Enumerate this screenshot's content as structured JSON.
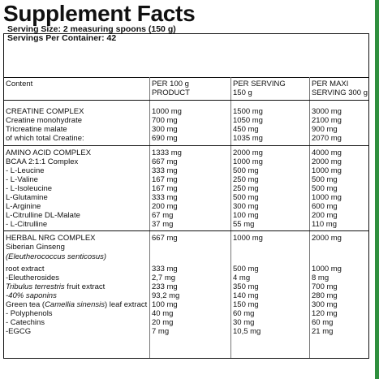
{
  "title": "Supplement Facts",
  "serving_size": "Serving Size: 2 measuring spoons (150 g)",
  "servings_per_container": "Servings Per Container: 42",
  "headers": {
    "content": "Content",
    "per100_line1": "PER 100 g",
    "per100_line2": "PRODUCT",
    "perserving_line1": "PER SERVING",
    "perserving_line2": "150 g",
    "permaxi_line1": "PER MAXI",
    "permaxi_line2": "SERVING  300 g"
  },
  "rows": [
    {
      "name": "CREATINE COMPLEX",
      "per100": "1000 mg",
      "serving": "1500 mg",
      "maxi": "3000 mg"
    },
    {
      "name": "Creatine monohydrate",
      "per100": "700 mg",
      "serving": "1050 mg",
      "maxi": "2100 mg"
    },
    {
      "name": "Tricreatine malate",
      "per100": "300 mg",
      "serving": "450 mg",
      "maxi": "900 mg"
    },
    {
      "name": "of which total Creatine:",
      "per100": "690 mg",
      "serving": "1035 mg",
      "maxi": "2070 mg"
    },
    {
      "name": "AMINO ACID COMPLEX",
      "per100": "1333 mg",
      "serving": "2000 mg",
      "maxi": "4000 mg"
    },
    {
      "name": "BCAA 2:1:1 Complex",
      "per100": "667 mg",
      "serving": "1000 mg",
      "maxi": "2000 mg"
    },
    {
      "name": "- L-Leucine",
      "per100": "333 mg",
      "serving": "500 mg",
      "maxi": "1000 mg"
    },
    {
      "name": "- L-Valine",
      "per100": "167 mg",
      "serving": "250 mg",
      "maxi": "500 mg"
    },
    {
      "name": "- L-Isoleucine",
      "per100": "167 mg",
      "serving": "250 mg",
      "maxi": "500 mg"
    },
    {
      "name": "L-Glutamine",
      "per100": "333 mg",
      "serving": "500 mg",
      "maxi": "1000 mg"
    },
    {
      "name": "L-Arginine",
      "per100": "200 mg",
      "serving": "300 mg",
      "maxi": "600 mg"
    },
    {
      "name": "L-Citrulline DL-Malate",
      "per100": "67 mg",
      "serving": "100 mg",
      "maxi": "200 mg"
    },
    {
      "name": "- L-Citrulline",
      "per100": "37 mg",
      "serving": "55 mg",
      "maxi": "110 mg"
    },
    {
      "name": "HERBAL NRG COMPLEX",
      "per100": "667 mg",
      "serving": "1000 mg",
      "maxi": "2000 mg"
    },
    {
      "name": "Siberian Ginseng",
      "per100": "",
      "serving": "",
      "maxi": ""
    },
    {
      "name": "(Eleutherococcus senticosus)",
      "per100": "",
      "serving": "",
      "maxi": ""
    },
    {
      "name": "root extract",
      "per100": "333 mg",
      "serving": "500 mg",
      "maxi": "1000 mg"
    },
    {
      "name": "-Eleutherosides",
      "per100": "2,7 mg",
      "serving": "4 mg",
      "maxi": "8 mg"
    },
    {
      "name_a": "Tribulus terrestris",
      "name_b": " fruit extract",
      "per100": "233 mg",
      "serving": "350 mg",
      "maxi": "700 mg"
    },
    {
      "name": "-40% saponins",
      "per100": "93,2 mg",
      "serving": "140 mg",
      "maxi": "280 mg"
    },
    {
      "name_a": "Green tea (",
      "name_b": "Camellia sinensis",
      "name_c": ") leaf extract",
      "per100": "100 mg",
      "serving": "150 mg",
      "maxi": "300 mg"
    },
    {
      "name": "- Polyphenols",
      "per100": "40 mg",
      "serving": "60 mg",
      "maxi": "120 mg"
    },
    {
      "name": "- Catechins",
      "per100": "20 mg",
      "serving": "30 mg",
      "maxi": "60 mg"
    },
    {
      "name": "-EGCG",
      "per100": "7 mg",
      "serving": "10,5 mg",
      "maxi": "21 mg"
    }
  ]
}
